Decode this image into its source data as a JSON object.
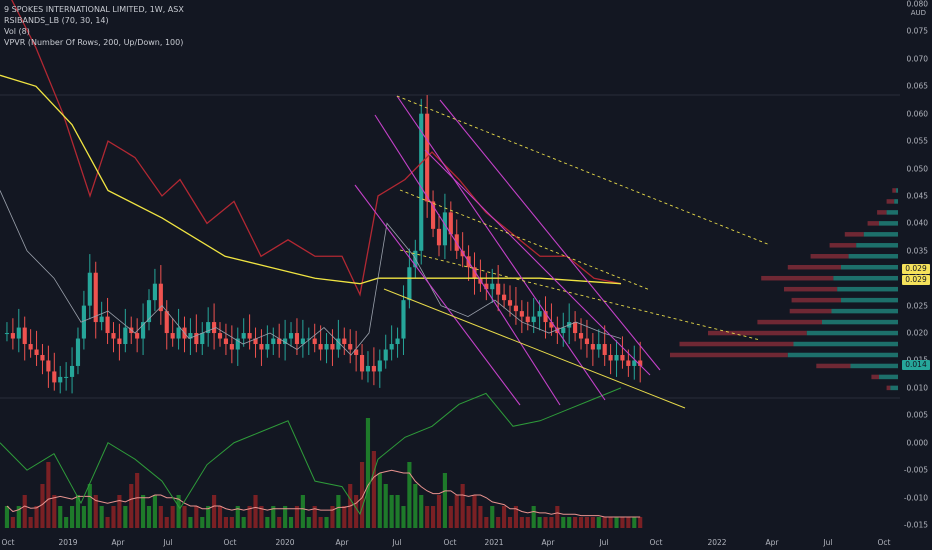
{
  "legend": {
    "symbol": "9 SPOKES INTERNATIONAL LIMITED, 1W, ASX",
    "ind1": "RSIBANDS_LB (70, 30, 14)",
    "ind2": "Vol (8)",
    "ind3": "VPVR (Number Of Rows, 200, Up/Down, 100)"
  },
  "axis": {
    "currency": "AUD",
    "price_ticks": [
      "0.080",
      "0.075",
      "0.070",
      "0.065",
      "0.060",
      "0.055",
      "0.050",
      "0.045",
      "0.040",
      "0.035",
      "0.030",
      "0.025",
      "0.020",
      "0.015",
      "0.010",
      "0.005",
      "0.000",
      "-0.005",
      "-0.010",
      "-0.015"
    ],
    "x_ticks": [
      "Oct",
      "2019",
      "Apr",
      "Jul",
      "Oct",
      "2020",
      "Apr",
      "Jul",
      "Oct",
      "2021",
      "Apr",
      "Jul",
      "Oct",
      "2022",
      "Apr",
      "Jul",
      "Oct"
    ]
  },
  "badges": [
    {
      "label": "0.029",
      "color": "#f5e25b"
    },
    {
      "label": "0.029",
      "color": "#f5e25b"
    },
    {
      "label": "0.014",
      "color": "#26a69a"
    }
  ],
  "colors": {
    "bg": "#131722",
    "up": "#26a69a",
    "down": "#ef5350",
    "rsiband_upper": "#b22833",
    "rsiband_mid": "#f0e442",
    "rsiband_lower": "#9aa0ab",
    "channel": "#c341c8",
    "trend": "#e6d94a",
    "volume_ma": "#e8938f",
    "rsi_line": "#2e9b3a"
  },
  "chart_data": {
    "type": "candlestick",
    "title": "9 SPOKES INTERNATIONAL LIMITED, 1W, ASX",
    "ylabel": "AUD",
    "ylim": [
      -0.016,
      0.08
    ],
    "x_range": [
      "2018-09",
      "2022-11"
    ],
    "grid": false,
    "candles_close_weekly": [
      0.02,
      0.019,
      0.021,
      0.018,
      0.017,
      0.016,
      0.015,
      0.013,
      0.011,
      0.012,
      0.012,
      0.014,
      0.019,
      0.025,
      0.031,
      0.022,
      0.023,
      0.02,
      0.019,
      0.018,
      0.021,
      0.02,
      0.019,
      0.022,
      0.026,
      0.029,
      0.024,
      0.02,
      0.019,
      0.021,
      0.019,
      0.02,
      0.018,
      0.02,
      0.022,
      0.02,
      0.019,
      0.018,
      0.017,
      0.019,
      0.02,
      0.019,
      0.018,
      0.017,
      0.018,
      0.019,
      0.018,
      0.019,
      0.02,
      0.018,
      0.019,
      0.019,
      0.018,
      0.017,
      0.018,
      0.017,
      0.019,
      0.018,
      0.017,
      0.016,
      0.013,
      0.014,
      0.013,
      0.015,
      0.017,
      0.018,
      0.019,
      0.026,
      0.032,
      0.035,
      0.06,
      0.044,
      0.039,
      0.036,
      0.042,
      0.038,
      0.035,
      0.034,
      0.032,
      0.03,
      0.029,
      0.028,
      0.029,
      0.027,
      0.026,
      0.025,
      0.024,
      0.023,
      0.022,
      0.023,
      0.024,
      0.022,
      0.021,
      0.02,
      0.021,
      0.022,
      0.02,
      0.019,
      0.018,
      0.017,
      0.018,
      0.016,
      0.015,
      0.016,
      0.015,
      0.014,
      0.015,
      0.014
    ],
    "rsiband_upper_pts": [
      [
        0.0,
        0.085
      ],
      [
        0.04,
        0.072
      ],
      [
        0.07,
        0.06
      ],
      [
        0.1,
        0.045
      ],
      [
        0.12,
        0.055
      ],
      [
        0.15,
        0.052
      ],
      [
        0.18,
        0.045
      ],
      [
        0.2,
        0.048
      ],
      [
        0.23,
        0.04
      ],
      [
        0.26,
        0.044
      ],
      [
        0.29,
        0.034
      ],
      [
        0.32,
        0.037
      ],
      [
        0.35,
        0.034
      ],
      [
        0.38,
        0.034
      ],
      [
        0.4,
        0.027
      ],
      [
        0.42,
        0.045
      ],
      [
        0.45,
        0.048
      ],
      [
        0.48,
        0.053
      ],
      [
        0.51,
        0.048
      ],
      [
        0.54,
        0.042
      ],
      [
        0.57,
        0.038
      ],
      [
        0.6,
        0.034
      ],
      [
        0.63,
        0.034
      ],
      [
        0.66,
        0.03
      ],
      [
        0.69,
        0.029
      ]
    ],
    "rsiband_mid_pts": [
      [
        0.0,
        0.067
      ],
      [
        0.04,
        0.065
      ],
      [
        0.08,
        0.058
      ],
      [
        0.12,
        0.046
      ],
      [
        0.18,
        0.041
      ],
      [
        0.25,
        0.034
      ],
      [
        0.3,
        0.032
      ],
      [
        0.35,
        0.03
      ],
      [
        0.4,
        0.029
      ],
      [
        0.42,
        0.03
      ],
      [
        0.5,
        0.03
      ],
      [
        0.6,
        0.03
      ],
      [
        0.69,
        0.029
      ]
    ],
    "rsiband_lower_pts": [
      [
        0.0,
        0.046
      ],
      [
        0.03,
        0.035
      ],
      [
        0.06,
        0.03
      ],
      [
        0.09,
        0.022
      ],
      [
        0.12,
        0.024
      ],
      [
        0.15,
        0.02
      ],
      [
        0.18,
        0.025
      ],
      [
        0.21,
        0.019
      ],
      [
        0.24,
        0.021
      ],
      [
        0.27,
        0.018
      ],
      [
        0.3,
        0.02
      ],
      [
        0.33,
        0.017
      ],
      [
        0.36,
        0.021
      ],
      [
        0.39,
        0.016
      ],
      [
        0.41,
        0.02
      ],
      [
        0.43,
        0.04
      ],
      [
        0.46,
        0.034
      ],
      [
        0.49,
        0.025
      ],
      [
        0.52,
        0.023
      ],
      [
        0.55,
        0.026
      ],
      [
        0.58,
        0.022
      ],
      [
        0.61,
        0.02
      ],
      [
        0.64,
        0.022
      ],
      [
        0.67,
        0.02
      ],
      [
        0.69,
        0.019
      ]
    ],
    "rsi_pts": [
      [
        0.0,
        0.0
      ],
      [
        0.03,
        -0.005
      ],
      [
        0.06,
        -0.002
      ],
      [
        0.09,
        -0.011
      ],
      [
        0.12,
        0.0
      ],
      [
        0.15,
        -0.003
      ],
      [
        0.18,
        -0.007
      ],
      [
        0.2,
        -0.012
      ],
      [
        0.23,
        -0.004
      ],
      [
        0.26,
        0.0
      ],
      [
        0.29,
        0.002
      ],
      [
        0.32,
        0.004
      ],
      [
        0.35,
        -0.007
      ],
      [
        0.38,
        -0.008
      ],
      [
        0.4,
        -0.013
      ],
      [
        0.42,
        -0.003
      ],
      [
        0.45,
        0.001
      ],
      [
        0.48,
        0.003
      ],
      [
        0.51,
        0.007
      ],
      [
        0.54,
        0.009
      ],
      [
        0.57,
        0.003
      ],
      [
        0.6,
        0.004
      ],
      [
        0.63,
        0.006
      ],
      [
        0.66,
        0.008
      ],
      [
        0.69,
        0.01
      ]
    ],
    "volume_bars": [
      0.2,
      0.1,
      0.2,
      0.3,
      0.1,
      0.2,
      0.4,
      0.6,
      0.3,
      0.2,
      0.1,
      0.2,
      0.3,
      0.2,
      0.4,
      0.3,
      0.2,
      0.1,
      0.2,
      0.3,
      0.2,
      0.4,
      0.5,
      0.3,
      0.2,
      0.3,
      0.2,
      0.1,
      0.2,
      0.3,
      0.2,
      0.1,
      0.2,
      0.1,
      0.2,
      0.3,
      0.2,
      0.1,
      0.1,
      0.2,
      0.1,
      0.2,
      0.3,
      0.2,
      0.1,
      0.2,
      0.1,
      0.2,
      0.1,
      0.2,
      0.3,
      0.1,
      0.2,
      0.1,
      0.1,
      0.2,
      0.3,
      0.2,
      0.4,
      0.3,
      0.6,
      1.0,
      0.7,
      0.5,
      0.4,
      0.3,
      0.3,
      0.2,
      0.6,
      0.4,
      0.3,
      0.2,
      0.2,
      0.3,
      0.5,
      0.2,
      0.3,
      0.4,
      0.2,
      0.3,
      0.2,
      0.1,
      0.2,
      0.1,
      0.2,
      0.1,
      0.2,
      0.1,
      0.1,
      0.2,
      0.1,
      0.1,
      0.1,
      0.2,
      0.1,
      0.1,
      0.1,
      0.1,
      0.1,
      0.1,
      0.1,
      0.1,
      0.1,
      0.1,
      0.1,
      0.1,
      0.1,
      0.1
    ],
    "vpvr": [
      {
        "price": 0.046,
        "up": 0.01,
        "down": 0.02
      },
      {
        "price": 0.044,
        "up": 0.02,
        "down": 0.04
      },
      {
        "price": 0.042,
        "up": 0.06,
        "down": 0.05
      },
      {
        "price": 0.04,
        "up": 0.1,
        "down": 0.06
      },
      {
        "price": 0.038,
        "up": 0.18,
        "down": 0.1
      },
      {
        "price": 0.036,
        "up": 0.22,
        "down": 0.14
      },
      {
        "price": 0.034,
        "up": 0.26,
        "down": 0.2
      },
      {
        "price": 0.032,
        "up": 0.3,
        "down": 0.28
      },
      {
        "price": 0.03,
        "up": 0.34,
        "down": 0.38
      },
      {
        "price": 0.028,
        "up": 0.32,
        "down": 0.28
      },
      {
        "price": 0.026,
        "up": 0.3,
        "down": 0.26
      },
      {
        "price": 0.024,
        "up": 0.35,
        "down": 0.22
      },
      {
        "price": 0.022,
        "up": 0.4,
        "down": 0.34
      },
      {
        "price": 0.02,
        "up": 0.48,
        "down": 0.52
      },
      {
        "price": 0.018,
        "up": 0.55,
        "down": 0.6
      },
      {
        "price": 0.016,
        "up": 0.58,
        "down": 0.62
      },
      {
        "price": 0.014,
        "up": 0.25,
        "down": 0.18
      },
      {
        "price": 0.012,
        "up": 0.1,
        "down": 0.04
      },
      {
        "price": 0.01,
        "up": 0.04,
        "down": 0.02
      }
    ]
  }
}
